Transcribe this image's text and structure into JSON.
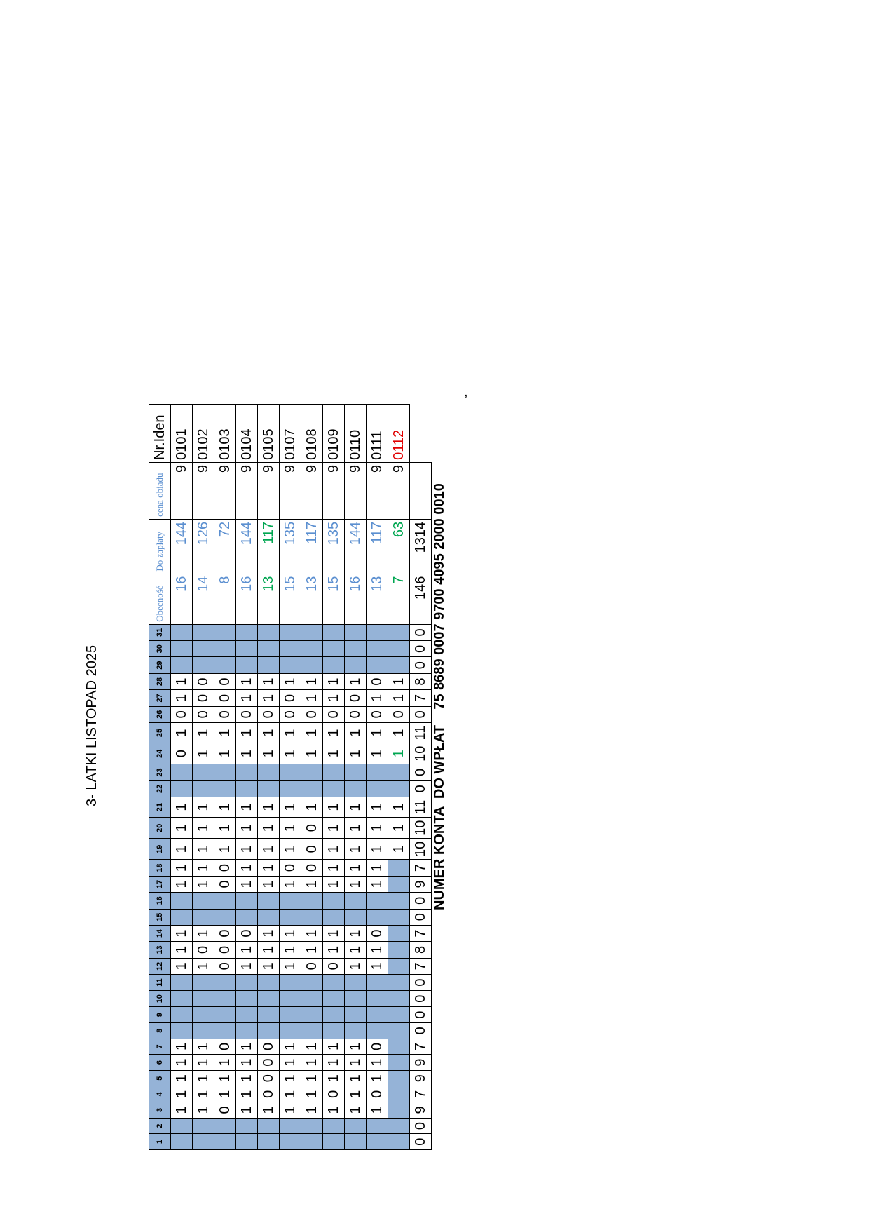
{
  "title": "3- LATKI LISTOPAD 2025",
  "table": {
    "header": {
      "days": [
        1,
        2,
        3,
        4,
        5,
        6,
        7,
        8,
        9,
        10,
        11,
        12,
        13,
        14,
        15,
        16,
        17,
        18,
        19,
        20,
        21,
        22,
        23,
        24,
        25,
        26,
        27,
        28,
        29,
        30,
        31
      ],
      "attendance": "Obecność",
      "amount_due": "Do zapłaty",
      "meal_price": "cena obiadu",
      "id": "Nr.Iden"
    },
    "rows": [
      {
        "days": [
          null,
          null,
          1,
          1,
          1,
          1,
          1,
          null,
          null,
          null,
          null,
          1,
          1,
          1,
          null,
          null,
          1,
          1,
          1,
          1,
          1,
          null,
          null,
          0,
          1,
          0,
          1,
          1,
          null,
          null,
          null
        ],
        "attendance": 16,
        "amount_due": 144,
        "meal_price": 9,
        "id": "0101"
      },
      {
        "days": [
          null,
          null,
          1,
          1,
          1,
          1,
          1,
          null,
          null,
          null,
          null,
          1,
          0,
          1,
          null,
          null,
          1,
          1,
          1,
          1,
          1,
          null,
          null,
          1,
          1,
          0,
          0,
          0,
          null,
          null,
          null
        ],
        "attendance": 14,
        "amount_due": 126,
        "meal_price": 9,
        "id": "0102"
      },
      {
        "days": [
          null,
          null,
          0,
          1,
          1,
          1,
          0,
          null,
          null,
          null,
          null,
          0,
          0,
          0,
          null,
          null,
          0,
          0,
          1,
          1,
          1,
          null,
          null,
          1,
          1,
          0,
          0,
          0,
          null,
          null,
          null
        ],
        "attendance": 8,
        "amount_due": 72,
        "meal_price": 9,
        "id": "0103"
      },
      {
        "days": [
          null,
          null,
          1,
          1,
          1,
          1,
          1,
          null,
          null,
          null,
          null,
          1,
          1,
          0,
          null,
          null,
          1,
          1,
          1,
          1,
          1,
          null,
          null,
          1,
          1,
          0,
          1,
          1,
          null,
          null,
          null
        ],
        "attendance": 16,
        "amount_due": 144,
        "meal_price": 9,
        "id": "0104"
      },
      {
        "days": [
          null,
          null,
          1,
          0,
          0,
          0,
          0,
          null,
          null,
          null,
          null,
          1,
          1,
          1,
          null,
          null,
          1,
          1,
          1,
          1,
          1,
          null,
          null,
          1,
          1,
          0,
          1,
          1,
          null,
          null,
          null
        ],
        "attendance": 13,
        "amount_due": 117,
        "meal_price": 9,
        "id": "0105"
      },
      {
        "days": [
          null,
          null,
          1,
          1,
          1,
          1,
          1,
          null,
          null,
          null,
          null,
          1,
          1,
          1,
          null,
          null,
          1,
          0,
          1,
          1,
          1,
          null,
          null,
          1,
          1,
          0,
          0,
          1,
          null,
          null,
          null
        ],
        "attendance": 15,
        "amount_due": 135,
        "meal_price": 9,
        "id": "0107"
      },
      {
        "days": [
          null,
          null,
          1,
          1,
          1,
          1,
          1,
          null,
          null,
          null,
          null,
          0,
          1,
          1,
          null,
          null,
          1,
          0,
          0,
          0,
          1,
          null,
          null,
          1,
          1,
          0,
          1,
          1,
          null,
          null,
          null
        ],
        "attendance": 13,
        "amount_due": 117,
        "meal_price": 9,
        "id": "0108"
      },
      {
        "days": [
          null,
          null,
          1,
          0,
          1,
          1,
          1,
          null,
          null,
          null,
          null,
          0,
          1,
          1,
          null,
          null,
          1,
          1,
          1,
          1,
          1,
          null,
          null,
          1,
          1,
          0,
          1,
          1,
          null,
          null,
          null
        ],
        "attendance": 15,
        "amount_due": 135,
        "meal_price": 9,
        "id": "0109"
      },
      {
        "days": [
          null,
          null,
          1,
          1,
          1,
          1,
          1,
          null,
          null,
          null,
          null,
          1,
          1,
          1,
          null,
          null,
          1,
          1,
          1,
          1,
          1,
          null,
          null,
          1,
          1,
          0,
          0,
          1,
          null,
          null,
          null
        ],
        "attendance": 16,
        "amount_due": 144,
        "meal_price": 9,
        "id": "0110"
      },
      {
        "days": [
          null,
          null,
          1,
          0,
          1,
          1,
          0,
          null,
          null,
          null,
          null,
          1,
          1,
          0,
          null,
          null,
          1,
          1,
          1,
          1,
          1,
          null,
          null,
          1,
          1,
          0,
          1,
          0,
          null,
          null,
          null
        ],
        "attendance": 13,
        "amount_due": 117,
        "meal_price": 9,
        "id": "0111"
      },
      {
        "days": [
          null,
          null,
          null,
          null,
          null,
          null,
          null,
          null,
          null,
          null,
          null,
          null,
          null,
          null,
          null,
          null,
          null,
          null,
          1,
          1,
          1,
          null,
          null,
          1,
          1,
          0,
          1,
          1,
          null,
          null,
          null
        ],
        "attendance": 7,
        "amount_due": 63,
        "meal_price": 9,
        "id": "0112"
      }
    ],
    "totals": {
      "days": [
        0,
        0,
        9,
        7,
        9,
        9,
        7,
        0,
        0,
        0,
        0,
        7,
        8,
        7,
        0,
        0,
        9,
        7,
        10,
        10,
        11,
        0,
        0,
        10,
        11,
        0,
        7,
        8,
        0,
        0,
        0
      ],
      "attendance": 146,
      "amount_due": 1314
    }
  },
  "account": {
    "label": "NUMER KONTA  DO WPŁAT",
    "number": "75 8689 0007 9700 4095 2000 0010"
  },
  "mark": ","
}
